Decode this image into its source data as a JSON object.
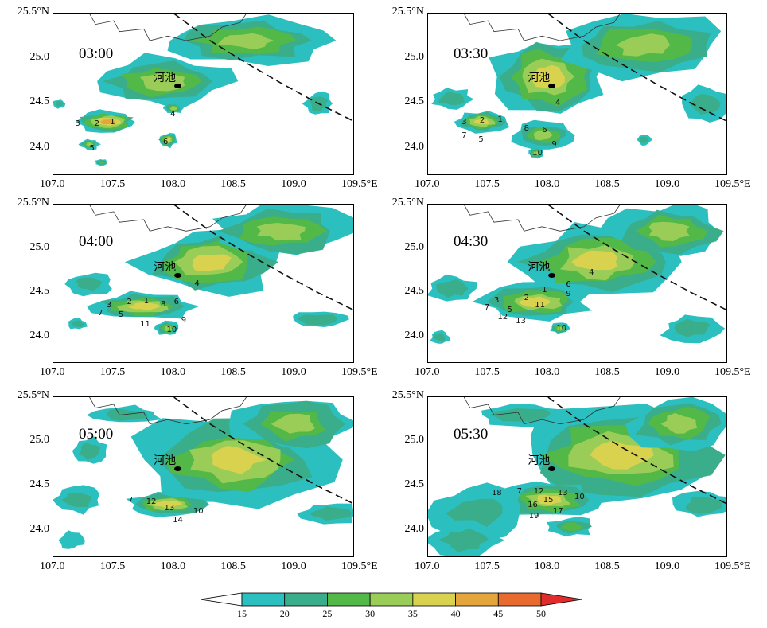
{
  "panels": [
    {
      "time": "03:00",
      "city": "河池",
      "cells": [
        {
          "label": "1",
          "lon": 107.49,
          "lat": 24.29
        },
        {
          "label": "2",
          "lon": 107.36,
          "lat": 24.27
        },
        {
          "label": "3",
          "lon": 107.2,
          "lat": 24.27
        },
        {
          "label": "4",
          "lon": 107.99,
          "lat": 24.38
        },
        {
          "label": "5",
          "lon": 107.32,
          "lat": 24.0
        },
        {
          "label": "6",
          "lon": 107.93,
          "lat": 24.07
        }
      ]
    },
    {
      "time": "03:30",
      "city": "河池",
      "cells": [
        {
          "label": "1",
          "lon": 107.6,
          "lat": 24.32
        },
        {
          "label": "2",
          "lon": 107.45,
          "lat": 24.31
        },
        {
          "label": "3",
          "lon": 107.3,
          "lat": 24.29
        },
        {
          "label": "4",
          "lon": 108.08,
          "lat": 24.5
        },
        {
          "label": "5",
          "lon": 107.44,
          "lat": 24.1
        },
        {
          "label": "6",
          "lon": 107.97,
          "lat": 24.2
        },
        {
          "label": "7",
          "lon": 107.3,
          "lat": 24.14
        },
        {
          "label": "8",
          "lon": 107.82,
          "lat": 24.22
        },
        {
          "label": "9",
          "lon": 108.05,
          "lat": 24.04
        },
        {
          "label": "10",
          "lon": 107.89,
          "lat": 23.95
        }
      ]
    },
    {
      "time": "04:00",
      "city": "河池",
      "cells": [
        {
          "label": "1",
          "lon": 107.77,
          "lat": 24.4
        },
        {
          "label": "2",
          "lon": 107.63,
          "lat": 24.39
        },
        {
          "label": "3",
          "lon": 107.46,
          "lat": 24.36
        },
        {
          "label": "4",
          "lon": 108.19,
          "lat": 24.6
        },
        {
          "label": "5",
          "lon": 107.56,
          "lat": 24.25
        },
        {
          "label": "6",
          "lon": 108.02,
          "lat": 24.39
        },
        {
          "label": "7",
          "lon": 107.39,
          "lat": 24.27
        },
        {
          "label": "8",
          "lon": 107.91,
          "lat": 24.37
        },
        {
          "label": "9",
          "lon": 108.08,
          "lat": 24.19
        },
        {
          "label": "10",
          "lon": 107.96,
          "lat": 24.08
        },
        {
          "label": "11",
          "lon": 107.74,
          "lat": 24.14
        }
      ]
    },
    {
      "time": "04:30",
      "city": "河池",
      "cells": [
        {
          "label": "1",
          "lon": 107.97,
          "lat": 24.53
        },
        {
          "label": "2",
          "lon": 107.82,
          "lat": 24.44
        },
        {
          "label": "3",
          "lon": 107.57,
          "lat": 24.41
        },
        {
          "label": "4",
          "lon": 108.36,
          "lat": 24.73
        },
        {
          "label": "5",
          "lon": 107.68,
          "lat": 24.3
        },
        {
          "label": "6",
          "lon": 108.17,
          "lat": 24.59
        },
        {
          "label": "7",
          "lon": 107.49,
          "lat": 24.33
        },
        {
          "label": "9",
          "lon": 108.17,
          "lat": 24.48
        },
        {
          "label": "10",
          "lon": 108.09,
          "lat": 24.1
        },
        {
          "label": "11",
          "lon": 107.91,
          "lat": 24.36
        },
        {
          "label": "12",
          "lon": 107.6,
          "lat": 24.22
        },
        {
          "label": "13",
          "lon": 107.75,
          "lat": 24.18
        }
      ]
    },
    {
      "time": "05:00",
      "city": "河池",
      "cells": [
        {
          "label": "7",
          "lon": 107.64,
          "lat": 24.34
        },
        {
          "label": "10",
          "lon": 108.18,
          "lat": 24.22
        },
        {
          "label": "12",
          "lon": 107.79,
          "lat": 24.32
        },
        {
          "label": "13",
          "lon": 107.94,
          "lat": 24.25
        },
        {
          "label": "14",
          "lon": 108.01,
          "lat": 24.12
        }
      ]
    },
    {
      "time": "05:30",
      "city": "河池",
      "cells": [
        {
          "label": "7",
          "lon": 107.76,
          "lat": 24.44
        },
        {
          "label": "10",
          "lon": 108.24,
          "lat": 24.38
        },
        {
          "label": "12",
          "lon": 107.9,
          "lat": 24.44
        },
        {
          "label": "13",
          "lon": 108.1,
          "lat": 24.42
        },
        {
          "label": "15",
          "lon": 107.98,
          "lat": 24.34
        },
        {
          "label": "16",
          "lon": 107.85,
          "lat": 24.29
        },
        {
          "label": "17",
          "lon": 108.06,
          "lat": 24.22
        },
        {
          "label": "18",
          "lon": 107.55,
          "lat": 24.42
        },
        {
          "label": "19",
          "lon": 107.86,
          "lat": 24.16
        }
      ]
    }
  ],
  "axes": {
    "x_ticks": [
      "107.0",
      "107.5",
      "108.0",
      "108.5",
      "109.0",
      "109.5°E"
    ],
    "y_ticks": [
      "25.5°N",
      "25.0",
      "24.5",
      "24.0"
    ],
    "lon_range": [
      107.0,
      109.5
    ],
    "lat_range": [
      23.7,
      25.5
    ]
  },
  "city_location": {
    "lon": 108.03,
    "lat": 24.7
  },
  "colorbar": {
    "labels": [
      "15",
      "20",
      "25",
      "30",
      "35",
      "40",
      "45",
      "50"
    ],
    "colors": [
      "#ffffff",
      "#2bbfbf",
      "#3aae8a",
      "#52b848",
      "#9acd57",
      "#d8d24e",
      "#e4a53c",
      "#e86a2e",
      "#e02c2c"
    ]
  }
}
